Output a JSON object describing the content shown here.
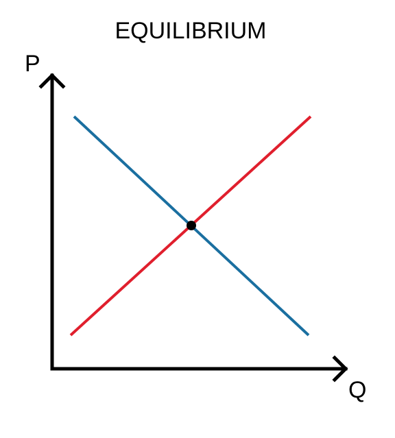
{
  "diagram": {
    "title": "EQUILIBRIUM",
    "y_axis_label": "P",
    "x_axis_label": "Q",
    "colors": {
      "axes": "#000000",
      "demand_line": "#1a6fa0",
      "supply_line": "#e01f2d",
      "equilibrium_point": "#000000",
      "background": "#ffffff"
    }
  }
}
